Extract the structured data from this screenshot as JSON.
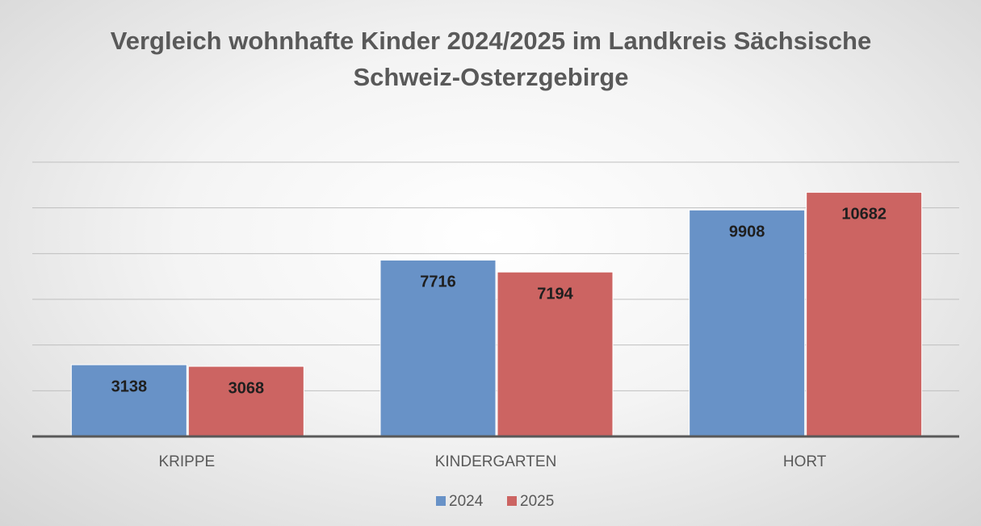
{
  "chart_data": {
    "type": "bar",
    "title": "Vergleich wohnhafte Kinder 2024/2025 im Landkreis Sächsische Schweiz-Osterzgebirge",
    "categories": [
      "KRIPPE",
      "KINDERGARTEN",
      "HORT"
    ],
    "series": [
      {
        "name": "2024",
        "color": "#6892c7",
        "values": [
          3138,
          7716,
          9908
        ]
      },
      {
        "name": "2025",
        "color": "#cc6462",
        "values": [
          3068,
          7194,
          10682
        ]
      }
    ],
    "ylim": [
      0,
      12000
    ],
    "yticks": [
      0,
      2000,
      4000,
      6000,
      8000,
      10000,
      12000
    ],
    "grid": true,
    "legend": "bottom"
  }
}
